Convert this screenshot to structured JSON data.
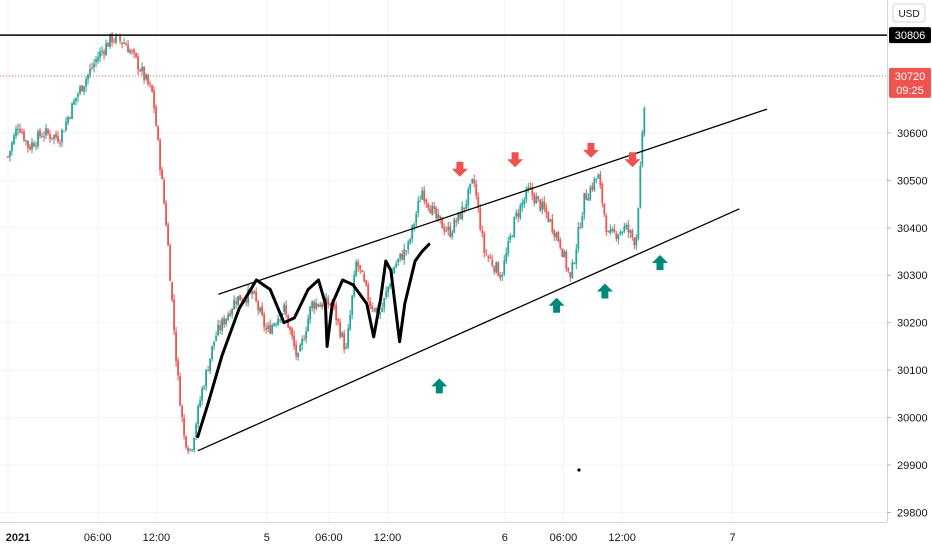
{
  "chart_data": {
    "type": "candlestick",
    "currency": "USD",
    "y_ticks": [
      29800,
      29900,
      30000,
      30100,
      30200,
      30300,
      30400,
      30500,
      30600
    ],
    "ylim": [
      29780,
      30880
    ],
    "x_ticks": [
      "2021",
      "06:00",
      "12:00",
      "5",
      "06:00",
      "12:00",
      "6",
      "06:00",
      "12:00",
      "7"
    ],
    "bold_x_ticks": [
      "2021"
    ],
    "horizontal_level": {
      "label": "30806",
      "value": 30806,
      "color": "#000000"
    },
    "last_price": {
      "label": "30720",
      "value": 30720,
      "countdown": "09:25",
      "color": "#ef5350"
    },
    "colors": {
      "up": "#26a69a",
      "down": "#ef5350",
      "grid": "#f0f3fa"
    },
    "price_path": [
      [
        0,
        30550
      ],
      [
        0.3,
        30620
      ],
      [
        0.6,
        30570
      ],
      [
        1.0,
        30600
      ],
      [
        1.5,
        30590
      ],
      [
        2.0,
        30680
      ],
      [
        2.6,
        30760
      ],
      [
        3.0,
        30800
      ],
      [
        3.4,
        30790
      ],
      [
        3.8,
        30740
      ],
      [
        4.2,
        30680
      ],
      [
        4.6,
        30400
      ],
      [
        4.9,
        30100
      ],
      [
        5.1,
        29960
      ],
      [
        5.3,
        29930
      ],
      [
        5.6,
        30050
      ],
      [
        6.0,
        30170
      ],
      [
        6.6,
        30250
      ],
      [
        7.1,
        30260
      ],
      [
        7.5,
        30180
      ],
      [
        8.0,
        30230
      ],
      [
        8.4,
        30120
      ],
      [
        8.8,
        30240
      ],
      [
        9.4,
        30240
      ],
      [
        9.8,
        30140
      ],
      [
        10.1,
        30330
      ],
      [
        10.5,
        30240
      ],
      [
        10.8,
        30220
      ],
      [
        11.2,
        30320
      ],
      [
        11.6,
        30360
      ],
      [
        12.0,
        30480
      ],
      [
        12.4,
        30420
      ],
      [
        12.8,
        30390
      ],
      [
        13.2,
        30440
      ],
      [
        13.5,
        30500
      ],
      [
        13.8,
        30350
      ],
      [
        14.3,
        30300
      ],
      [
        14.7,
        30420
      ],
      [
        15.1,
        30480
      ],
      [
        15.6,
        30430
      ],
      [
        16.0,
        30370
      ],
      [
        16.3,
        30290
      ],
      [
        16.7,
        30460
      ],
      [
        17.1,
        30510
      ],
      [
        17.4,
        30380
      ],
      [
        17.9,
        30400
      ],
      [
        18.2,
        30370
      ],
      [
        18.5,
        30720
      ]
    ],
    "drawings": {
      "channel_upper": [
        [
          6.1,
          30260
        ],
        [
          22.0,
          30650
        ]
      ],
      "channel_lower": [
        [
          5.5,
          29930
        ],
        [
          21.2,
          30440
        ]
      ],
      "down_arrows": [
        [
          13.1,
          30520
        ],
        [
          14.7,
          30540
        ],
        [
          16.9,
          30560
        ],
        [
          18.1,
          30540
        ]
      ],
      "up_arrows": [
        [
          12.5,
          30070
        ],
        [
          15.9,
          30240
        ],
        [
          17.3,
          30270
        ],
        [
          18.9,
          30330
        ]
      ]
    },
    "x_label_positions": [
      0.0,
      2.6,
      4.3,
      7.5,
      9.3,
      11.0,
      14.4,
      16.1,
      17.8,
      21.0
    ]
  }
}
